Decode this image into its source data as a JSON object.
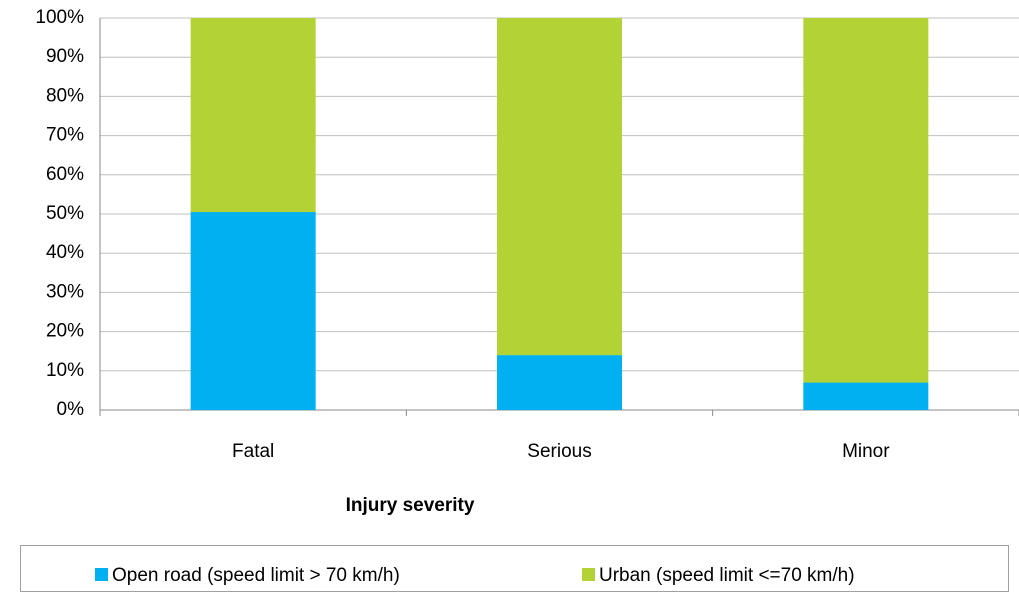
{
  "chart_data": {
    "type": "stacked_bar",
    "x_label": "Injury severity",
    "categories": [
      "Fatal",
      "Serious",
      "Minor"
    ],
    "series": [
      {
        "name": "Open road (speed limit > 70 km/h)",
        "color": "#00b0f0",
        "values": [
          50.5,
          14,
          7
        ]
      },
      {
        "name": "Urban (speed limit <=70 km/h)",
        "color": "#b3d235",
        "values": [
          49.5,
          86,
          93
        ]
      }
    ],
    "ylim": [
      0,
      100
    ],
    "yticks": [
      {
        "value": 0,
        "label": "0%"
      },
      {
        "value": 10,
        "label": "10%"
      },
      {
        "value": 20,
        "label": "20%"
      },
      {
        "value": 30,
        "label": "30%"
      },
      {
        "value": 40,
        "label": "40%"
      },
      {
        "value": 50,
        "label": "50%"
      },
      {
        "value": 60,
        "label": "60%"
      },
      {
        "value": 70,
        "label": "70%"
      },
      {
        "value": 80,
        "label": "80%"
      },
      {
        "value": 90,
        "label": "90%"
      },
      {
        "value": 100,
        "label": "100%"
      }
    ],
    "grid": true,
    "legend": "bottom"
  }
}
